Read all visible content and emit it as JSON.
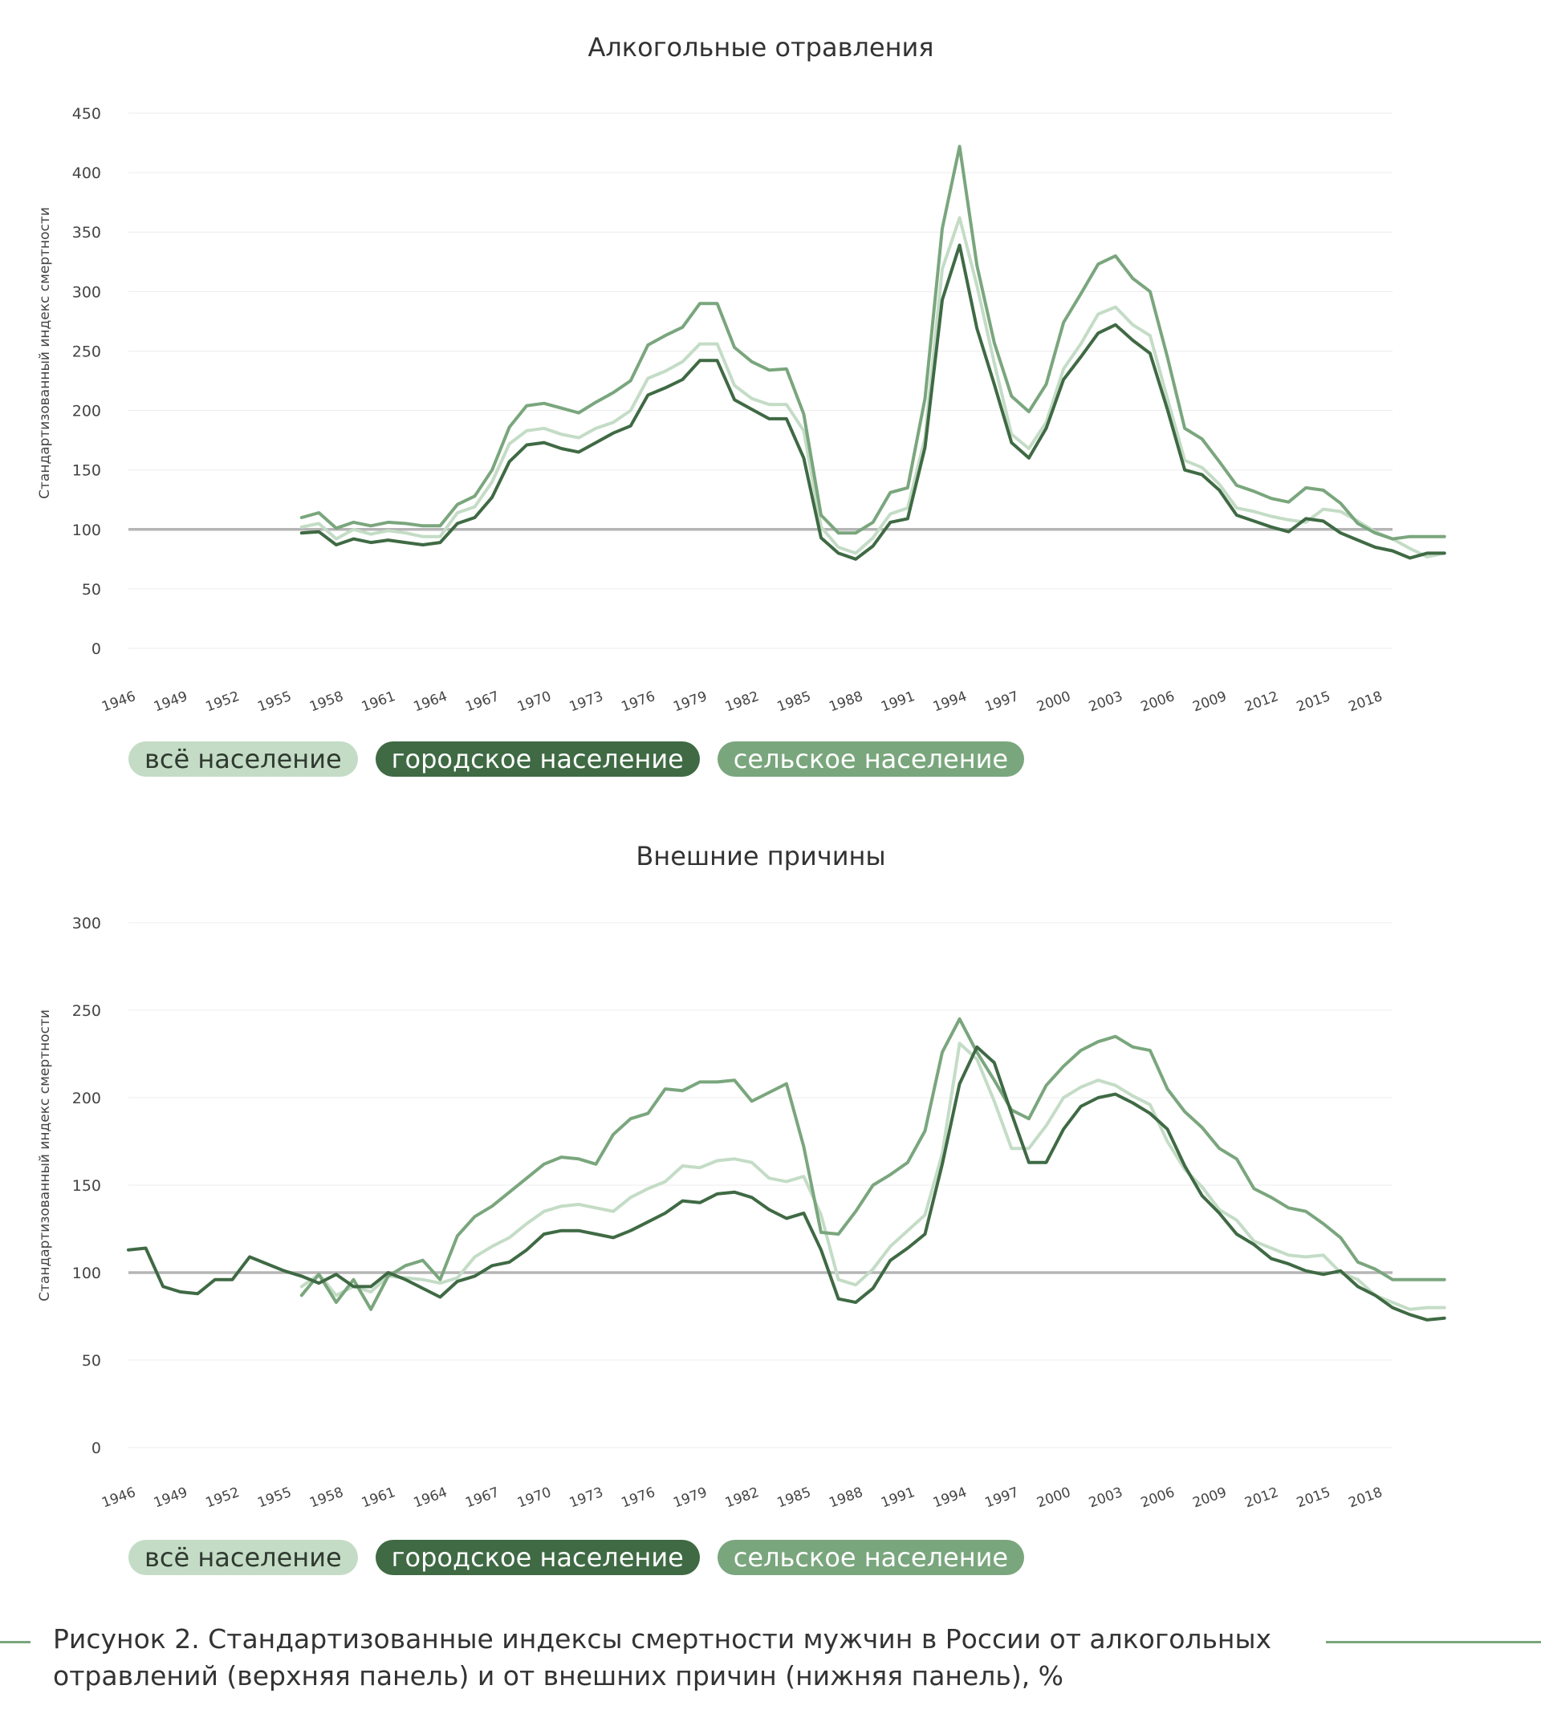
{
  "colors": {
    "all": "#c4dcc6",
    "urban": "#3f6a44",
    "rural": "#7aa67d",
    "reference": "#b5b5b5",
    "grid": "#ececec",
    "axis_text": "#444444"
  },
  "legend": {
    "all": "всё население",
    "urban": "городское население",
    "rural": "сельское население"
  },
  "caption": "Рисунок 2. Стандартизованные индексы смертности мужчин в России от алкогольных отравлений (верхняя панель) и от внешних причин (нижняя панель), %",
  "chart_data": [
    {
      "type": "line",
      "title": "Алкогольные отравления",
      "xlabel": "",
      "ylabel": "Стандартизованный индекс смертности",
      "ylim": [
        0,
        450
      ],
      "yticks": [
        0,
        50,
        100,
        150,
        200,
        250,
        300,
        350,
        400,
        450
      ],
      "xlim": [
        1946,
        2019
      ],
      "xticks": [
        "1946",
        "1949",
        "1952",
        "1955",
        "1958",
        "1961",
        "1964",
        "1967",
        "1970",
        "1973",
        "1976",
        "1979",
        "1982",
        "1985",
        "1988",
        "1991",
        "1994",
        "1997",
        "2000",
        "2003",
        "2006",
        "2009",
        "2012",
        "2015",
        "2018"
      ],
      "reference_line": 100,
      "grid": true,
      "series": [
        {
          "name": "всё население",
          "key": "all",
          "start": 1956,
          "values": [
            102,
            105,
            92,
            100,
            96,
            99,
            97,
            94,
            94,
            114,
            119,
            140,
            172,
            183,
            185,
            180,
            177,
            185,
            190,
            200,
            227,
            233,
            241,
            256,
            256,
            221,
            210,
            205,
            205,
            183,
            102,
            85,
            80,
            93,
            113,
            118,
            177,
            319,
            362,
            305,
            240,
            180,
            168,
            190,
            235,
            256,
            281,
            287,
            272,
            263,
            210,
            158,
            152,
            138,
            118,
            115,
            111,
            108,
            106,
            117,
            115,
            107,
            98,
            92,
            84,
            77,
            80
          ]
        },
        {
          "name": "городское население",
          "key": "urban",
          "start": 1956,
          "values": [
            97,
            98,
            87,
            92,
            89,
            91,
            89,
            87,
            89,
            105,
            110,
            127,
            157,
            171,
            173,
            168,
            165,
            173,
            181,
            187,
            213,
            219,
            226,
            242,
            242,
            209,
            201,
            193,
            193,
            160,
            93,
            80,
            75,
            86,
            106,
            109,
            169,
            293,
            339,
            269,
            222,
            173,
            160,
            185,
            226,
            245,
            265,
            272,
            259,
            248,
            201,
            150,
            146,
            133,
            112,
            107,
            102,
            98,
            109,
            107,
            97,
            91,
            85,
            82,
            76,
            80,
            80
          ]
        },
        {
          "name": "сельское население",
          "key": "rural",
          "start": 1956,
          "values": [
            110,
            114,
            101,
            106,
            103,
            106,
            105,
            103,
            103,
            121,
            128,
            150,
            186,
            204,
            206,
            202,
            198,
            207,
            215,
            225,
            255,
            263,
            270,
            290,
            290,
            253,
            241,
            234,
            235,
            197,
            112,
            97,
            97,
            106,
            131,
            135,
            210,
            353,
            422,
            322,
            257,
            212,
            199,
            222,
            274,
            298,
            323,
            330,
            311,
            300,
            245,
            185,
            176,
            157,
            137,
            132,
            126,
            123,
            135,
            133,
            122,
            105,
            97,
            92,
            94,
            94,
            94
          ]
        }
      ]
    },
    {
      "type": "line",
      "title": "Внешние причины",
      "xlabel": "",
      "ylabel": "Стандартизованный индекс смертности",
      "ylim": [
        0,
        300
      ],
      "yticks": [
        0,
        50,
        100,
        150,
        200,
        250,
        300
      ],
      "xlim": [
        1946,
        2019
      ],
      "xticks": [
        "1946",
        "1949",
        "1952",
        "1955",
        "1958",
        "1961",
        "1964",
        "1967",
        "1970",
        "1973",
        "1976",
        "1979",
        "1982",
        "1985",
        "1988",
        "1991",
        "1994",
        "1997",
        "2000",
        "2003",
        "2006",
        "2009",
        "2012",
        "2015",
        "2018"
      ],
      "reference_line": 100,
      "grid": true,
      "series": [
        {
          "name": "всё население",
          "key": "all",
          "start": 1956,
          "values": [
            92,
            99,
            87,
            92,
            89,
            98,
            97,
            96,
            94,
            97,
            109,
            115,
            120,
            128,
            135,
            138,
            139,
            137,
            135,
            143,
            148,
            152,
            161,
            160,
            164,
            165,
            163,
            154,
            152,
            155,
            133,
            96,
            93,
            102,
            115,
            124,
            133,
            168,
            231,
            222,
            198,
            171,
            171,
            184,
            200,
            206,
            210,
            207,
            201,
            196,
            175,
            159,
            149,
            136,
            130,
            118,
            114,
            110,
            109,
            110,
            100,
            96,
            87,
            83,
            79,
            80,
            80
          ]
        },
        {
          "name": "городское население",
          "key": "urban",
          "start": 1946,
          "values": [
            113,
            114,
            92,
            89,
            88,
            96,
            96,
            109,
            105,
            101,
            98,
            94,
            99,
            92,
            92,
            100,
            96,
            91,
            86,
            95,
            98,
            104,
            106,
            113,
            122,
            124,
            124,
            122,
            120,
            124,
            129,
            134,
            141,
            140,
            145,
            146,
            143,
            136,
            131,
            134,
            113,
            85,
            83,
            91,
            107,
            114,
            122,
            162,
            208,
            229,
            220,
            191,
            163,
            163,
            182,
            195,
            200,
            202,
            197,
            191,
            182,
            161,
            144,
            134,
            122,
            116,
            108,
            105,
            101,
            99,
            101,
            92,
            87,
            80,
            76,
            73,
            74
          ]
        },
        {
          "name": "сельское население",
          "key": "rural",
          "start": 1956,
          "values": [
            87,
            99,
            83,
            96,
            79,
            98,
            104,
            107,
            96,
            121,
            132,
            138,
            146,
            154,
            162,
            166,
            165,
            162,
            179,
            188,
            191,
            205,
            204,
            209,
            209,
            210,
            198,
            203,
            208,
            172,
            123,
            122,
            135,
            150,
            156,
            163,
            181,
            226,
            245,
            226,
            210,
            193,
            188,
            207,
            218,
            227,
            232,
            235,
            229,
            227,
            205,
            192,
            183,
            171,
            165,
            148,
            143,
            137,
            135,
            128,
            120,
            106,
            102,
            96,
            96,
            96,
            96
          ]
        }
      ]
    }
  ]
}
